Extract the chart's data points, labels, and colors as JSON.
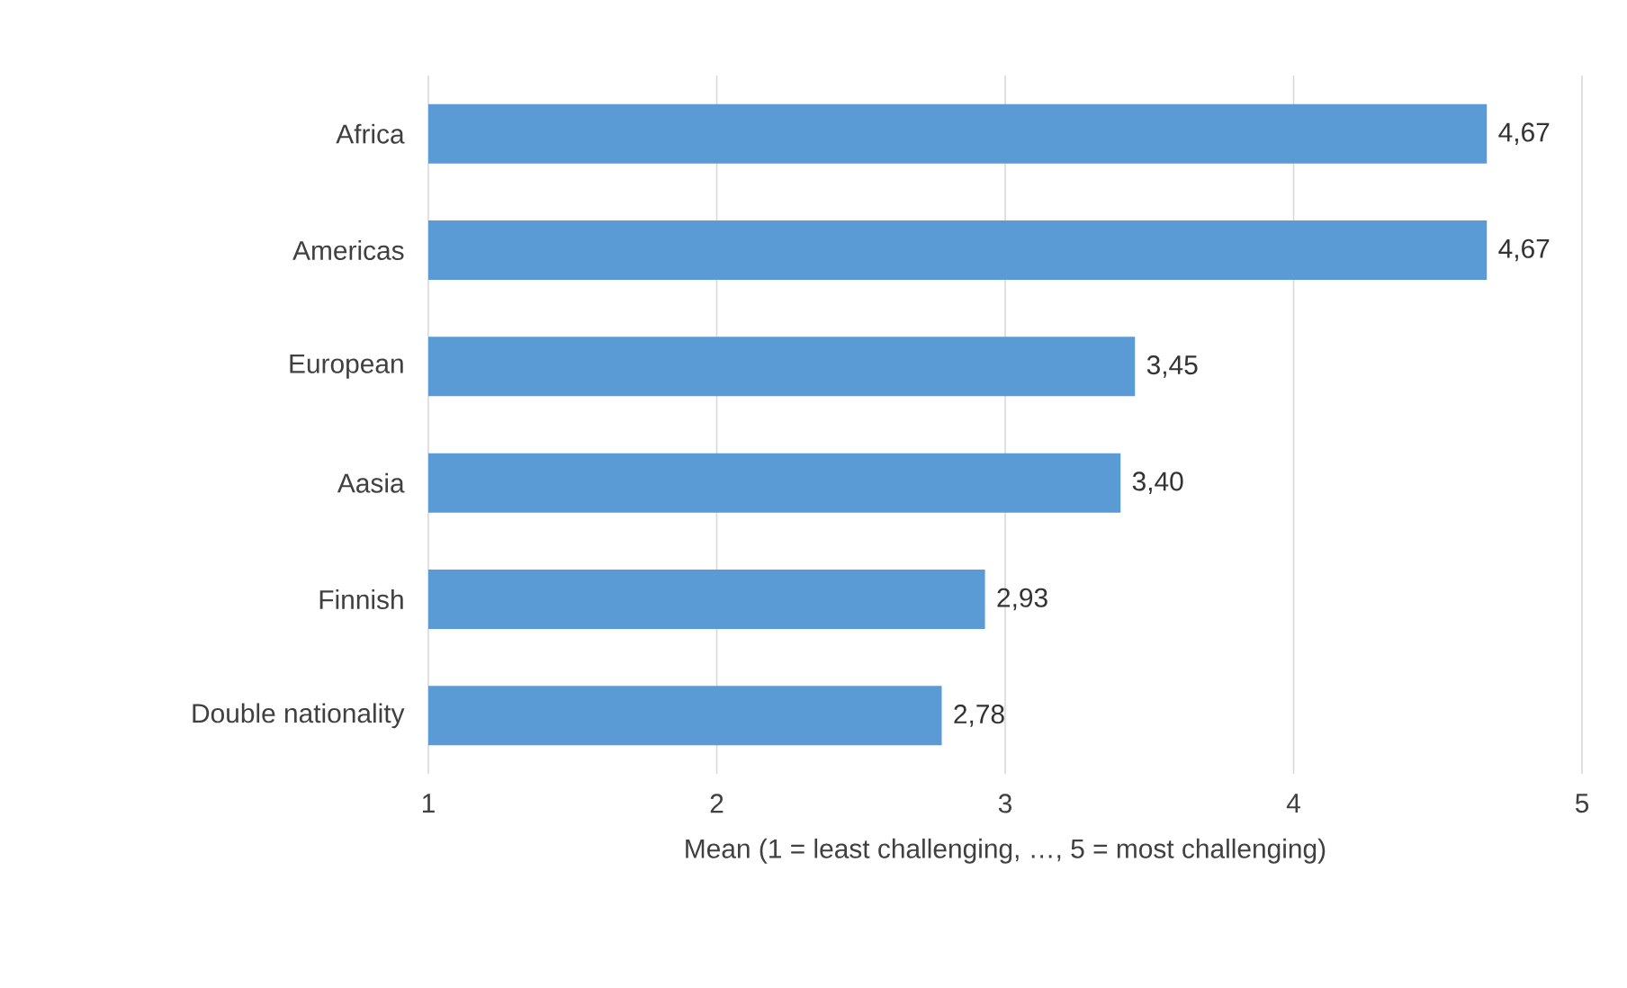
{
  "chart_data": {
    "type": "bar",
    "orientation": "horizontal",
    "categories": [
      "Africa",
      "Americas",
      "European",
      "Aasia",
      "Finnish",
      "Double nationality"
    ],
    "values": [
      4.67,
      4.67,
      3.45,
      3.4,
      2.93,
      2.78
    ],
    "value_labels": [
      "4,67",
      "4,67",
      "3,45",
      "3,40",
      "2,93",
      "2,78"
    ],
    "color": "#5b9bd5",
    "xlim": [
      1,
      5
    ],
    "xticks": [
      1,
      2,
      3,
      4,
      5
    ],
    "xlabel": "Mean (1 = least challenging, …, 5 = most challenging)",
    "grid": "x"
  }
}
